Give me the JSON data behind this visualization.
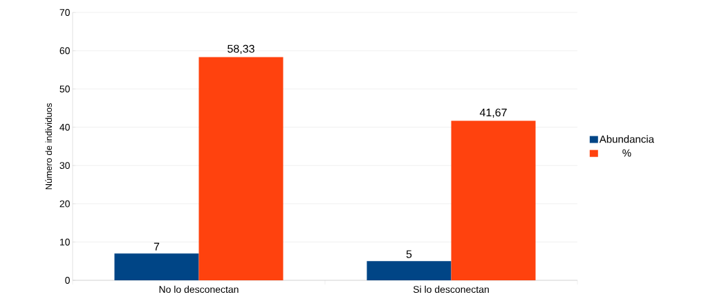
{
  "chart_data": {
    "type": "bar",
    "ylabel": "Número de individuos",
    "categories": [
      "No lo desconectan",
      "Si lo desconectan"
    ],
    "series": [
      {
        "name": "Abundancia",
        "color": "#004586",
        "values": [
          7,
          5
        ],
        "value_labels": [
          "7",
          "5"
        ]
      },
      {
        "name": "%",
        "color": "#ff420e",
        "values": [
          58.33,
          41.67
        ],
        "value_labels": [
          "58,33",
          "41,67"
        ]
      }
    ],
    "ylim": [
      0,
      70
    ],
    "yticks": [
      0,
      10,
      20,
      30,
      40,
      50,
      60,
      70
    ],
    "grid": "y",
    "legend": "right"
  }
}
